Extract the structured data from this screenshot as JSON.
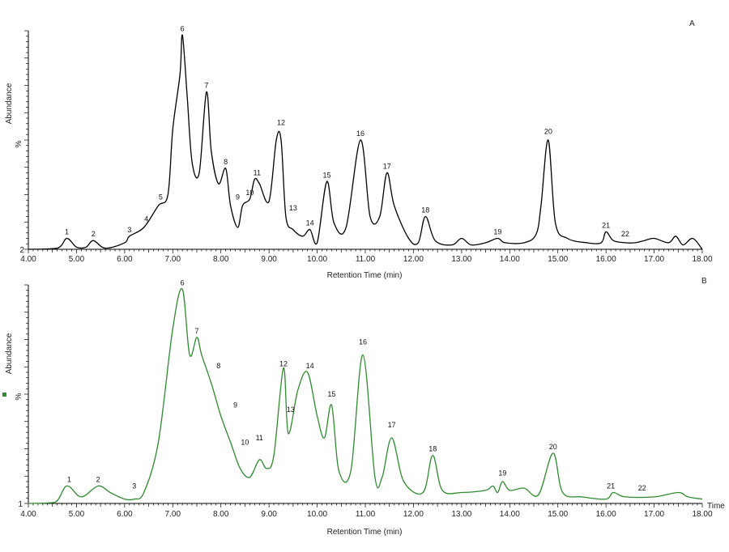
{
  "chart_data": [
    {
      "type": "line",
      "panel_label": "A",
      "xlabel": "Retention Time (min)",
      "ylabel": "Abundance",
      "y_unit": "%",
      "y_min_label": "2",
      "xlim": [
        4.0,
        18.0
      ],
      "ylim": [
        0,
        100
      ],
      "x_ticks": [
        "4.00",
        "5.00",
        "6.00",
        "7.00",
        "8.00",
        "9.00",
        "10.00",
        "11.00",
        "12.00",
        "13.00",
        "14.00",
        "15.00",
        "16.00",
        "17.00",
        "18.00"
      ],
      "color": "#000000",
      "series": [
        {
          "x": [
            4.0,
            4.6,
            4.8,
            5.0,
            5.2,
            5.35,
            5.6,
            6.0,
            6.1,
            6.4,
            6.7,
            6.9,
            7.0,
            7.15,
            7.2,
            7.3,
            7.4,
            7.55,
            7.7,
            7.8,
            7.95,
            8.1,
            8.2,
            8.35,
            8.45,
            8.6,
            8.7,
            8.8,
            9.0,
            9.15,
            9.25,
            9.35,
            9.5,
            9.7,
            9.85,
            10.0,
            10.2,
            10.35,
            10.6,
            10.9,
            11.1,
            11.3,
            11.45,
            11.6,
            11.9,
            12.1,
            12.25,
            12.45,
            12.8,
            13.0,
            13.2,
            13.5,
            13.75,
            13.9,
            14.3,
            14.55,
            14.65,
            14.8,
            14.95,
            15.2,
            15.6,
            15.9,
            16.0,
            16.15,
            16.4,
            16.6,
            16.8,
            17.0,
            17.3,
            17.45,
            17.6,
            17.8,
            18.0
          ],
          "values": [
            0,
            0.5,
            5,
            1,
            1,
            4,
            0.5,
            3,
            6,
            10,
            20,
            25,
            55,
            80,
            98,
            70,
            40,
            35,
            72,
            45,
            30,
            37,
            20,
            10,
            20,
            23,
            32,
            30,
            22,
            50,
            50,
            15,
            9,
            6,
            9,
            3,
            31,
            12,
            10,
            50,
            15,
            15,
            35,
            20,
            5,
            3,
            15,
            4,
            2,
            5,
            2,
            3,
            5,
            3,
            3,
            7,
            20,
            50,
            12,
            5,
            3,
            3,
            8,
            4,
            3,
            3,
            4,
            5,
            3,
            6,
            2,
            5,
            0
          ]
        }
      ],
      "peaks": [
        {
          "label": "1",
          "x": 4.8,
          "y": 5
        },
        {
          "label": "2",
          "x": 5.35,
          "y": 4
        },
        {
          "label": "3",
          "x": 6.1,
          "y": 6
        },
        {
          "label": "4",
          "x": 6.45,
          "y": 11
        },
        {
          "label": "5",
          "x": 6.75,
          "y": 21
        },
        {
          "label": "6",
          "x": 7.2,
          "y": 98
        },
        {
          "label": "7",
          "x": 7.7,
          "y": 72
        },
        {
          "label": "8",
          "x": 8.1,
          "y": 37
        },
        {
          "label": "9",
          "x": 8.35,
          "y": 21
        },
        {
          "label": "10",
          "x": 8.6,
          "y": 23
        },
        {
          "label": "11",
          "x": 8.75,
          "y": 32
        },
        {
          "label": "12",
          "x": 9.25,
          "y": 55
        },
        {
          "label": "13",
          "x": 9.5,
          "y": 16
        },
        {
          "label": "14",
          "x": 9.85,
          "y": 9
        },
        {
          "label": "15",
          "x": 10.2,
          "y": 31
        },
        {
          "label": "16",
          "x": 10.9,
          "y": 50
        },
        {
          "label": "17",
          "x": 11.45,
          "y": 35
        },
        {
          "label": "18",
          "x": 12.25,
          "y": 15
        },
        {
          "label": "19",
          "x": 13.75,
          "y": 5
        },
        {
          "label": "20",
          "x": 14.8,
          "y": 51
        },
        {
          "label": "21",
          "x": 16.0,
          "y": 8
        },
        {
          "label": "22",
          "x": 16.4,
          "y": 4
        }
      ]
    },
    {
      "type": "line",
      "panel_label": "B",
      "xlabel": "Retention Time (min)",
      "ylabel": "Abundance",
      "y_unit": "%",
      "y_min_label": "1",
      "x_axis_word": "Time",
      "xlim": [
        4.0,
        18.0
      ],
      "ylim": [
        0,
        100
      ],
      "x_ticks": [
        "4.00",
        "5.00",
        "6.00",
        "7.00",
        "8.00",
        "9.00",
        "10.00",
        "11.00",
        "12.00",
        "13.00",
        "14.00",
        "15.00",
        "16.00",
        "17.00",
        "18.00"
      ],
      "color": "#2e8b2e",
      "series": [
        {
          "x": [
            4.0,
            4.55,
            4.8,
            5.1,
            5.45,
            5.7,
            6.0,
            6.2,
            6.4,
            6.7,
            7.0,
            7.2,
            7.35,
            7.5,
            7.6,
            7.8,
            8.0,
            8.2,
            8.4,
            8.6,
            8.8,
            8.95,
            9.1,
            9.3,
            9.4,
            9.6,
            9.8,
            10.0,
            10.15,
            10.3,
            10.45,
            10.7,
            10.95,
            11.2,
            11.35,
            11.55,
            11.8,
            12.2,
            12.4,
            12.6,
            13.0,
            13.5,
            13.65,
            13.75,
            13.85,
            14.0,
            14.3,
            14.6,
            14.9,
            15.1,
            15.5,
            16.0,
            16.15,
            16.4,
            17.0,
            17.5,
            17.7,
            18.0
          ],
          "values": [
            0,
            0.5,
            8,
            3,
            8,
            5,
            2,
            2,
            5,
            28,
            80,
            98,
            68,
            76,
            68,
            55,
            40,
            28,
            16,
            12,
            20,
            16,
            22,
            62,
            32,
            52,
            60,
            40,
            30,
            45,
            15,
            15,
            68,
            12,
            12,
            30,
            10,
            5,
            22,
            6,
            5,
            6,
            8,
            5,
            10,
            6,
            7,
            4,
            23,
            5,
            3,
            2,
            5,
            3,
            3,
            5,
            3,
            2
          ]
        }
      ],
      "peaks": [
        {
          "label": "1",
          "x": 4.85,
          "y": 8
        },
        {
          "label": "2",
          "x": 5.45,
          "y": 8
        },
        {
          "label": "3",
          "x": 6.2,
          "y": 5
        },
        {
          "label": "6",
          "x": 7.2,
          "y": 98
        },
        {
          "label": "7",
          "x": 7.5,
          "y": 76
        },
        {
          "label": "8",
          "x": 7.95,
          "y": 60
        },
        {
          "label": "9",
          "x": 8.3,
          "y": 42
        },
        {
          "label": "10",
          "x": 8.5,
          "y": 25
        },
        {
          "label": "11",
          "x": 8.8,
          "y": 27
        },
        {
          "label": "12",
          "x": 9.3,
          "y": 61
        },
        {
          "label": "13",
          "x": 9.45,
          "y": 40
        },
        {
          "label": "14",
          "x": 9.85,
          "y": 60
        },
        {
          "label": "15",
          "x": 10.3,
          "y": 47
        },
        {
          "label": "16",
          "x": 10.95,
          "y": 71
        },
        {
          "label": "17",
          "x": 11.55,
          "y": 33
        },
        {
          "label": "18",
          "x": 12.4,
          "y": 22
        },
        {
          "label": "19",
          "x": 13.85,
          "y": 11
        },
        {
          "label": "20",
          "x": 14.9,
          "y": 23
        },
        {
          "label": "21",
          "x": 16.1,
          "y": 5
        },
        {
          "label": "22",
          "x": 16.75,
          "y": 4
        }
      ]
    }
  ]
}
